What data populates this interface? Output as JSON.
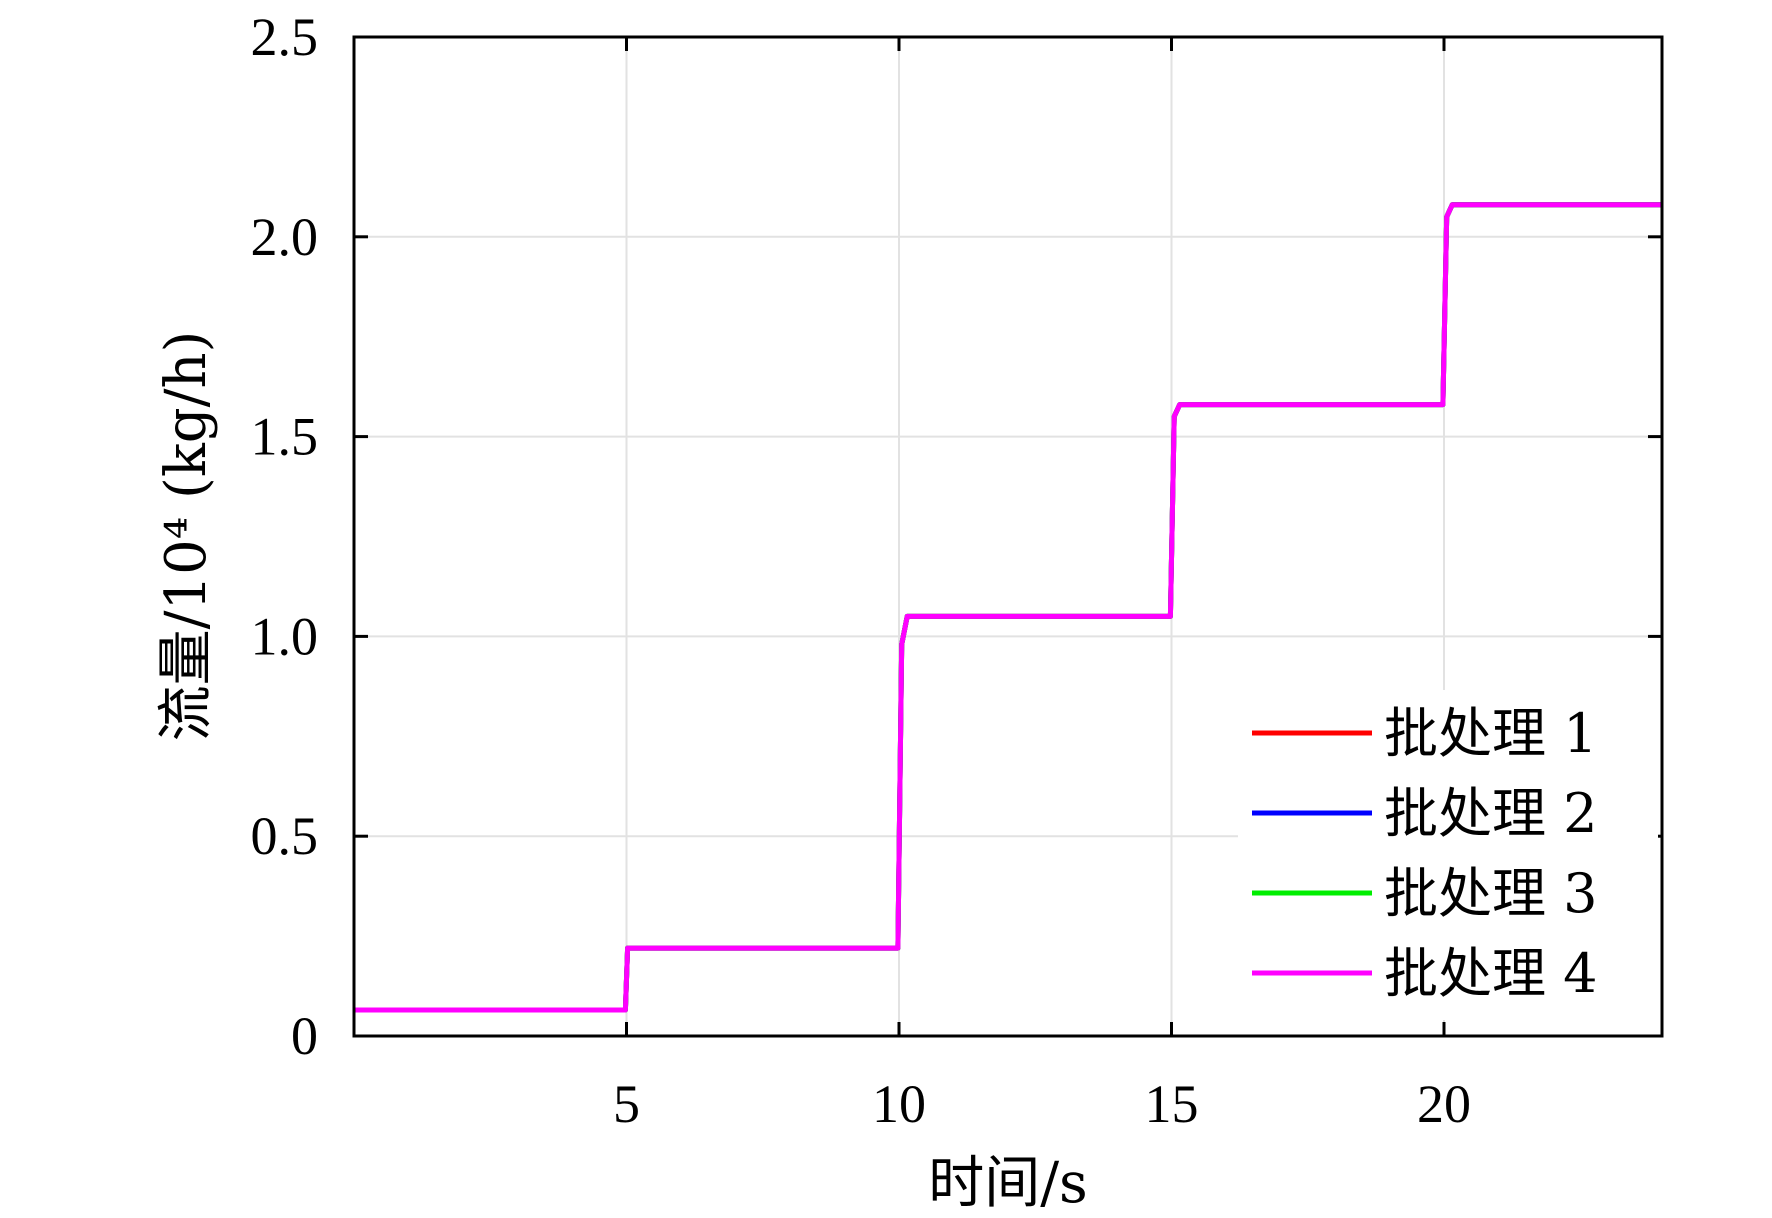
{
  "chart_data": {
    "type": "line",
    "title": "",
    "xlabel": "时间/s",
    "ylabel": "流量/10⁴ (kg/h)",
    "xlim": [
      0,
      24
    ],
    "ylim": [
      0,
      2.5
    ],
    "xticks": [
      5,
      10,
      15,
      20
    ],
    "xtick_labels": [
      "5",
      "10",
      "15",
      "20"
    ],
    "yticks": [
      0,
      0.5,
      1.0,
      1.5,
      2.0,
      2.5
    ],
    "ytick_labels": [
      "0",
      "0.5",
      "1.0",
      "1.5",
      "2.0",
      "2.5"
    ],
    "grid": true,
    "legend_position": "bottom-right",
    "x": [
      0,
      4.98,
      5.02,
      5.1,
      9.98,
      10.05,
      10.15,
      14.98,
      15.05,
      15.15,
      19.98,
      20.05,
      20.15,
      24
    ],
    "series": [
      {
        "name": "批处理 1",
        "color": "#ff0000",
        "values": [
          0.065,
          0.065,
          0.22,
          0.22,
          0.22,
          0.98,
          1.05,
          1.05,
          1.55,
          1.58,
          1.58,
          2.05,
          2.08,
          2.08
        ]
      },
      {
        "name": "批处理 2",
        "color": "#0000ff",
        "values": [
          0.065,
          0.065,
          0.22,
          0.22,
          0.22,
          0.98,
          1.05,
          1.05,
          1.55,
          1.58,
          1.58,
          2.05,
          2.08,
          2.08
        ]
      },
      {
        "name": "批处理 3",
        "color": "#00ee00",
        "values": [
          0.065,
          0.065,
          0.22,
          0.22,
          0.22,
          0.98,
          1.05,
          1.05,
          1.55,
          1.58,
          1.58,
          2.05,
          2.08,
          2.08
        ]
      },
      {
        "name": "批处理 4",
        "color": "#ff00ff",
        "values": [
          0.065,
          0.065,
          0.22,
          0.22,
          0.22,
          0.98,
          1.05,
          1.05,
          1.55,
          1.58,
          1.58,
          2.05,
          2.08,
          2.08
        ]
      }
    ]
  }
}
